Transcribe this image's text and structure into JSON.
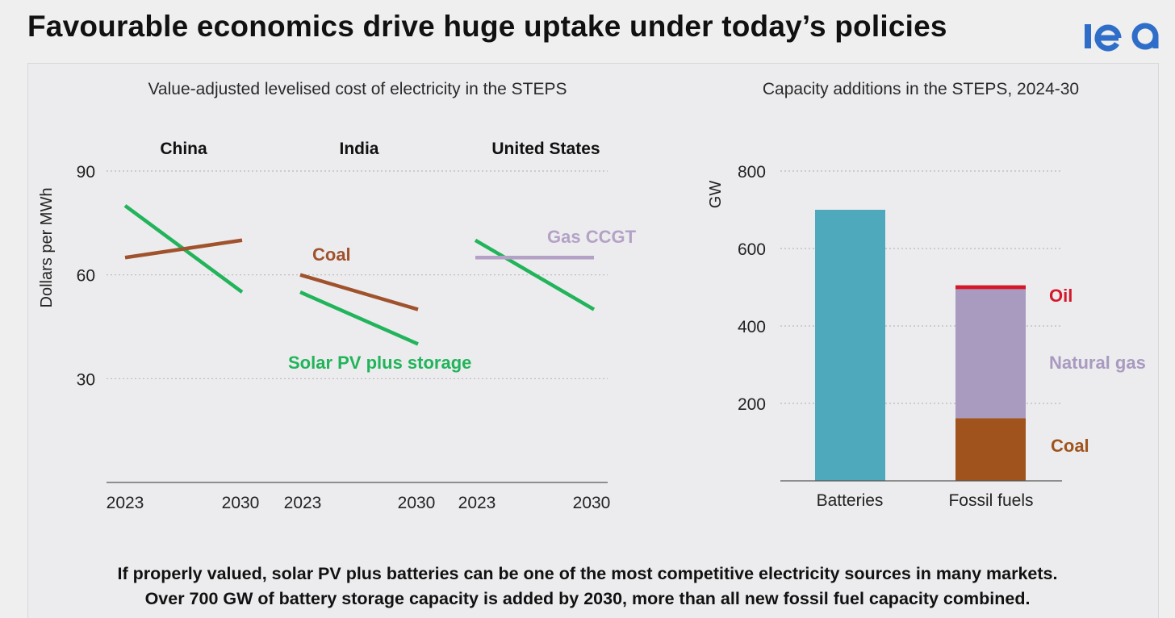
{
  "slide": {
    "title": "Favourable economics drive huge uptake under today’s policies",
    "logo_text": "iea",
    "footer_line1": "If properly valued, solar PV plus batteries can be one of the most competitive electricity sources in many markets.",
    "footer_line2": "Over 700 GW of battery storage capacity is added by 2030, more than all new fossil fuel capacity combined."
  },
  "colors": {
    "solar": "#22b45a",
    "coal_line": "#a0522d",
    "gas": "#b4a2c6",
    "batteries": "#4ea9bd",
    "natural_gas": "#a99ac0",
    "coal_bar": "#a0531d",
    "oil": "#d4182a"
  },
  "chart_data": [
    {
      "type": "line",
      "title": "Value-adjusted levelised cost of electricity in the STEPS",
      "ylabel": "Dollars per MWh",
      "ylim": [
        0,
        90
      ],
      "yticks": [
        30,
        60,
        90
      ],
      "grid": true,
      "panels": [
        {
          "name": "China",
          "x": [
            "2023",
            "2030"
          ],
          "series": [
            {
              "name": "Solar PV plus storage",
              "values": [
                80,
                55
              ],
              "color": "#22b45a"
            },
            {
              "name": "Coal",
              "values": [
                65,
                70
              ],
              "color": "#a0522d"
            }
          ]
        },
        {
          "name": "India",
          "x": [
            "2023",
            "2030"
          ],
          "series": [
            {
              "name": "Solar PV plus storage",
              "values": [
                55,
                40
              ],
              "color": "#22b45a"
            },
            {
              "name": "Coal",
              "values": [
                60,
                50
              ],
              "color": "#a0522d"
            }
          ]
        },
        {
          "name": "United States",
          "x": [
            "2023",
            "2030"
          ],
          "series": [
            {
              "name": "Solar PV plus storage",
              "values": [
                70,
                50
              ],
              "color": "#22b45a"
            },
            {
              "name": "Gas CCGT",
              "values": [
                65,
                65
              ],
              "color": "#b4a2c6"
            }
          ]
        }
      ],
      "annotations": {
        "coal": "Coal",
        "solar": "Solar PV plus storage",
        "gas": "Gas CCGT"
      }
    },
    {
      "type": "bar",
      "stacked": true,
      "title": "Capacity additions in the STEPS, 2024-30",
      "ylabel": "GW",
      "ylim": [
        0,
        800
      ],
      "yticks": [
        200,
        400,
        600,
        800
      ],
      "grid": true,
      "categories": [
        "Batteries",
        "Fossil fuels"
      ],
      "series": [
        {
          "name": "Batteries",
          "values": [
            700,
            0
          ],
          "color": "#4ea9bd"
        },
        {
          "name": "Coal",
          "values": [
            0,
            162
          ],
          "color": "#a0531d"
        },
        {
          "name": "Natural gas",
          "values": [
            0,
            333
          ],
          "color": "#a99ac0"
        },
        {
          "name": "Oil",
          "values": [
            0,
            10
          ],
          "color": "#d4182a"
        }
      ],
      "legend_labels": [
        "Oil",
        "Natural gas",
        "Coal"
      ]
    }
  ]
}
